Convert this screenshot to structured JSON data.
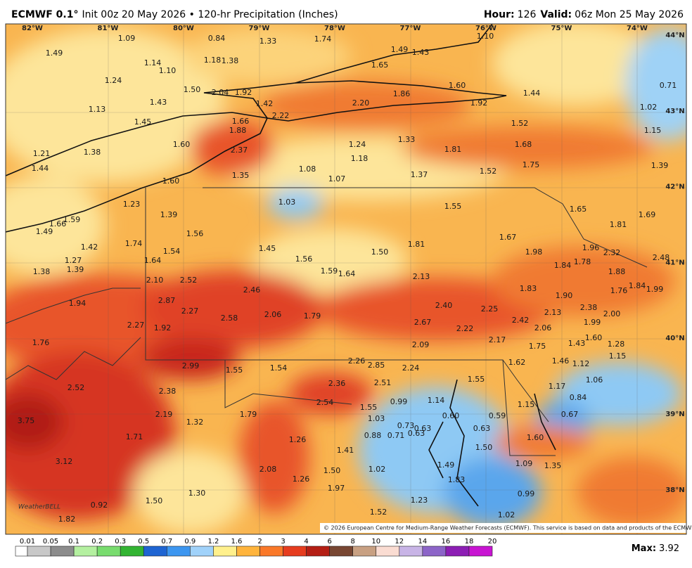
{
  "header": {
    "model": "ECMWF 0.1°",
    "init": "Init 00z 20 May 2026 • 120-hr Precipitation (Inches)",
    "hour_label": "Hour:",
    "hour": "126",
    "valid_label": "Valid:",
    "valid": "06z Mon 25 May 2026"
  },
  "longitudes": [
    "82°W",
    "81°W",
    "80°W",
    "79°W",
    "78°W",
    "77°W",
    "76°W",
    "75°W",
    "74°W"
  ],
  "latitudes": [
    "44°N",
    "43°N",
    "42°N",
    "41°N",
    "40°N",
    "39°N",
    "38°N"
  ],
  "map_labels": [
    "1.09",
    "0.84",
    "1.33",
    "1.74",
    "1.49",
    "1.43",
    "1.10",
    "1.49",
    "1.14",
    "1.10",
    "1.18",
    "1.38",
    "1.65",
    "1.24",
    "1.50",
    "2.04",
    "1.92",
    "1.86",
    "1.60",
    "1.44",
    "0.71",
    "1.43",
    "1.42",
    "2.20",
    "1.92",
    "1.02",
    "1.13",
    "2.22",
    "1.45",
    "1.66",
    "1.52",
    "1.88",
    "1.15",
    "1.33",
    "1.24",
    "1.60",
    "1.68",
    "1.81",
    "2.37",
    "1.21",
    "1.38",
    "1.18",
    "1.75",
    "1.39",
    "1.44",
    "1.08",
    "1.52",
    "1.35",
    "1.37",
    "1.07",
    "1.60",
    "1.03",
    "1.55",
    "1.23",
    "1.65",
    "1.69",
    "1.39",
    "1.59",
    "1.66",
    "1.81",
    "1.49",
    "1.56",
    "1.67",
    "1.74",
    "1.42",
    "1.81",
    "1.45",
    "1.96",
    "1.54",
    "1.50",
    "1.98",
    "2.32",
    "1.27",
    "1.64",
    "1.56",
    "1.78",
    "2.48",
    "1.84",
    "1.38",
    "1.39",
    "1.59",
    "1.64",
    "1.88",
    "2.13",
    "2.10",
    "2.52",
    "1.84",
    "1.99",
    "1.83",
    "1.76",
    "2.46",
    "1.90",
    "2.87",
    "1.94",
    "2.40",
    "2.38",
    "2.25",
    "2.27",
    "2.06",
    "1.79",
    "2.13",
    "2.00",
    "2.58",
    "2.42",
    "2.27",
    "1.92",
    "2.67",
    "1.99",
    "2.22",
    "2.06",
    "1.60",
    "2.17",
    "1.76",
    "1.43",
    "1.28",
    "2.09",
    "1.75",
    "1.15",
    "2.99",
    "1.55",
    "1.54",
    "2.26",
    "2.85",
    "2.24",
    "1.62",
    "1.46",
    "1.12",
    "1.06",
    "2.36",
    "2.51",
    "1.55",
    "1.17",
    "2.52",
    "2.38",
    "0.84",
    "0.99",
    "1.14",
    "2.54",
    "1.15",
    "1.55",
    "1.79",
    "2.19",
    "0.67",
    "3.75",
    "1.03",
    "0.60",
    "0.59",
    "1.32",
    "0.73",
    "0.63",
    "0.63",
    "0.88",
    "0.71",
    "0.63",
    "1.71",
    "1.26",
    "1.60",
    "1.50",
    "1.41",
    "3.12",
    "1.09",
    "1.35",
    "1.49",
    "2.08",
    "1.02",
    "1.50",
    "1.83",
    "1.26",
    "1.97",
    "1.30",
    "0.99",
    "1.50",
    "1.23",
    "0.92",
    "1.52",
    "1.02",
    "1.82"
  ],
  "credit": "© 2026 European Centre for Medium-Range Weather Forecasts (ECMWF). This service is based on data and products of the ECMWF.",
  "brand": "WeatherBELL",
  "colorbar": {
    "labels": [
      "0.01",
      "0.05",
      "0.1",
      "0.2",
      "0.3",
      "0.5",
      "0.7",
      "0.9",
      "1.2",
      "1.6",
      "2",
      "3",
      "4",
      "6",
      "8",
      "10",
      "12",
      "14",
      "16",
      "18",
      "20"
    ],
    "colors": [
      "#ffffff",
      "#c8c8c8",
      "#8c8c8c",
      "#b4f0a0",
      "#78dc6e",
      "#32b432",
      "#1e64d2",
      "#3c96f0",
      "#a0d2fa",
      "#fff08c",
      "#ffb43c",
      "#fa7828",
      "#e63c1e",
      "#b41e14",
      "#784632",
      "#c8a082",
      "#fadcd2",
      "#c8b4e6",
      "#8c64c8",
      "#8c1eb4",
      "#c814d2"
    ]
  },
  "max_label": "Max:",
  "max_value": "3.92"
}
